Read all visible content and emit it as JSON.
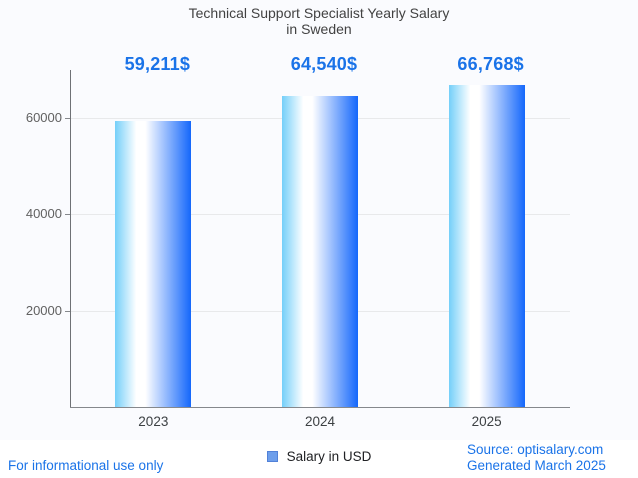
{
  "header": {
    "title_line1": "Technical Support Specialist Yearly Salary",
    "title_line2": "in Sweden"
  },
  "chart_data": {
    "type": "bar",
    "title": "Technical Support Specialist Yearly Salary in Sweden",
    "categories": [
      "2023",
      "2024",
      "2025"
    ],
    "values": [
      59211,
      64540,
      66768
    ],
    "value_labels": [
      "59,211$",
      "64,540$",
      "66,768$"
    ],
    "series": [
      {
        "name": "Salary in USD",
        "values": [
          59211,
          64540,
          66768
        ]
      }
    ],
    "xlabel": "",
    "ylabel": "",
    "ylim": [
      0,
      70000
    ],
    "yticks": [
      20000,
      40000,
      60000
    ],
    "ytick_labels": [
      "20000",
      "40000",
      "60000"
    ],
    "grid": true,
    "legend_position": "bottom",
    "annotation_color": "#1a73e8",
    "bar_gradient": [
      "#74cff9",
      "#ffffff",
      "#1467fb"
    ]
  },
  "legend": {
    "label": "Salary in USD",
    "marker_color": "#6d9eeb"
  },
  "footer": {
    "disclaimer": "For informational use only",
    "source": "Source: optisalary.com",
    "generated": "Generated March 2025",
    "link_color": "#1a73e8"
  }
}
